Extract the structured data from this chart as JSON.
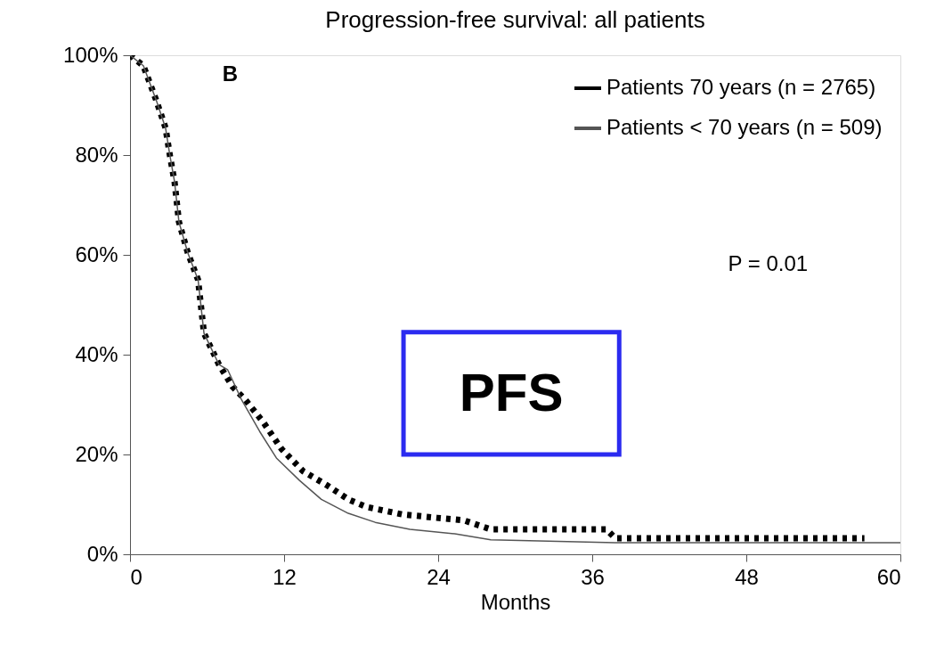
{
  "chart_data": {
    "type": "line",
    "title": "Progression-free survival: all patients",
    "xlabel": "Months",
    "xlim": [
      0,
      60
    ],
    "xticks": [
      0,
      12,
      24,
      36,
      48,
      60
    ],
    "ylim": [
      0,
      100
    ],
    "yticks": [
      {
        "value": 0,
        "label": "0%"
      },
      {
        "value": 20,
        "label": "20%"
      },
      {
        "value": 40,
        "label": "40%"
      },
      {
        "value": 60,
        "label": "60%"
      },
      {
        "value": 80,
        "label": "80%"
      },
      {
        "value": 100,
        "label": "100%"
      }
    ],
    "grid": false,
    "legend": "top right",
    "annotations": [
      "B",
      "P = 0.01",
      "PFS"
    ],
    "series": [
      {
        "name": "Patients 70 years (n = 2765)",
        "color": "#000000",
        "line_style": "dotted",
        "x": [
          0,
          1.04,
          2.08,
          2.77,
          3.1,
          3.47,
          3.81,
          4.5,
          5.3,
          5.76,
          6.93,
          7.98,
          9.0,
          10.4,
          11.8,
          13.5,
          15.3,
          17.0,
          18.4,
          21.2,
          23.9,
          26.0,
          28.1,
          37.1,
          37.8,
          57.2
        ],
        "values": [
          100,
          97.9,
          90.7,
          85.4,
          80,
          74.6,
          66.6,
          60.4,
          55,
          44.3,
          38,
          33.6,
          30.9,
          26.4,
          21.1,
          16.6,
          13.9,
          11,
          9.5,
          8,
          7.3,
          6.8,
          5,
          5,
          3.2,
          3.2
        ]
      },
      {
        "name": "Patients < 70 years (n = 509)",
        "color": "#555555",
        "line_style": "solid",
        "x": [
          0,
          1.04,
          2.08,
          2.77,
          3.1,
          3.47,
          3.81,
          4.5,
          5.3,
          5.76,
          6.93,
          7.6,
          8.7,
          10.1,
          11.4,
          13.2,
          14.9,
          17.0,
          19.1,
          21.8,
          25.3,
          28.1,
          37.8,
          60
        ],
        "values": [
          100,
          97.9,
          90.7,
          85.4,
          80,
          74.6,
          66.6,
          60.4,
          55,
          44.3,
          38,
          37,
          30.9,
          24.6,
          19.3,
          14.8,
          11,
          8.2,
          6.4,
          5,
          4.1,
          2.9,
          2.3,
          2.3
        ]
      }
    ]
  }
}
